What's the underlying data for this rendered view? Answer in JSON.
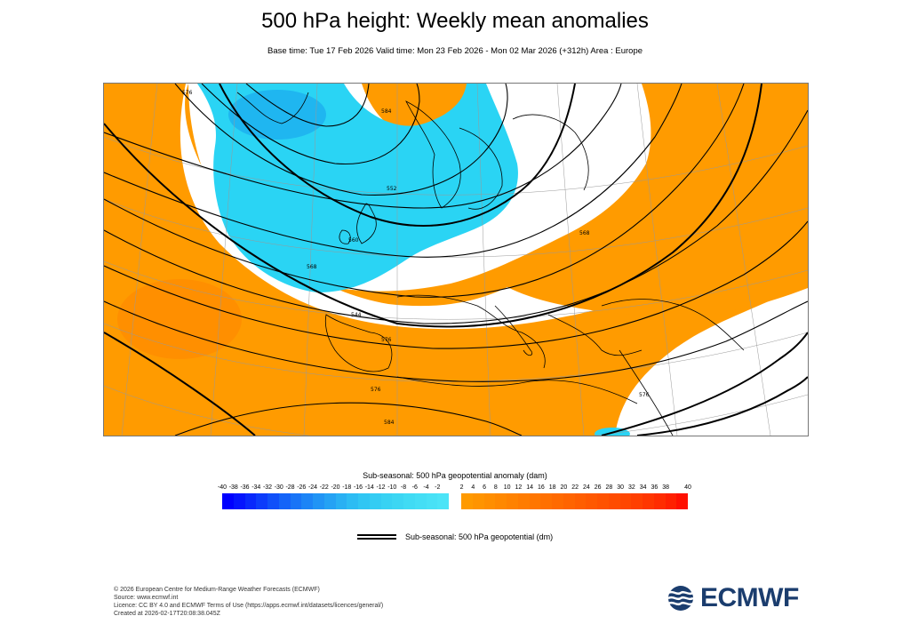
{
  "title": "500 hPa height: Weekly mean anomalies",
  "subtitle": "Base time: Tue 17 Feb 2026 Valid time: Mon 23 Feb 2026 - Mon 02 Mar 2026 (+312h) Area : Europe",
  "map": {
    "contour_labels": [
      "576",
      "584",
      "552",
      "560",
      "568",
      "544",
      "576",
      "576",
      "568",
      "576",
      "584"
    ]
  },
  "colorbar": {
    "title": "Sub-seasonal: 500 hPa geopotential anomaly (dam)",
    "neg_ticks": [
      "-40",
      "-38",
      "-36",
      "-34",
      "-32",
      "-30",
      "-28",
      "-26",
      "-24",
      "-22",
      "-20",
      "-18",
      "-16",
      "-14",
      "-12",
      "-10",
      "-8",
      "-6",
      "-4",
      "-2"
    ],
    "pos_ticks": [
      "2",
      "4",
      "6",
      "8",
      "10",
      "12",
      "14",
      "16",
      "18",
      "20",
      "22",
      "24",
      "26",
      "28",
      "30",
      "32",
      "34",
      "36",
      "38",
      "40"
    ],
    "neg_colors": [
      "#0000ff",
      "#0414fe",
      "#0828fc",
      "#0c3cfb",
      "#1050f9",
      "#1464f8",
      "#1874f7",
      "#1c84f6",
      "#2094f5",
      "#24a2f4",
      "#28b0f3",
      "#2cbcf3",
      "#30c6f3",
      "#34ccf3",
      "#38d2f3",
      "#3cd6f3",
      "#40dbf4",
      "#44def5",
      "#48e1f6",
      "#4ce4f7"
    ],
    "pos_colors": [
      "#ff9a00",
      "#ff9400",
      "#ff8e00",
      "#ff8800",
      "#ff8200",
      "#ff7c00",
      "#ff7600",
      "#ff7000",
      "#ff6a00",
      "#ff6400",
      "#ff5e00",
      "#ff5800",
      "#ff5200",
      "#ff4c00",
      "#ff4600",
      "#ff3f00",
      "#ff3600",
      "#ff2c00",
      "#ff2000",
      "#ff1000"
    ]
  },
  "legend": {
    "line_label": "Sub-seasonal: 500 hPa geopotential (dm)"
  },
  "footer": {
    "lines": [
      "© 2026 European Centre for Medium-Range Weather Forecasts (ECMWF)",
      "Source: www.ecmwf.int",
      "Licence: CC BY 4.0 and ECMWF Terms of Use (https://apps.ecmwf.int/datasets/licences/general/)",
      "Created at 2026-02-17T20:08:38.045Z"
    ]
  },
  "logo": {
    "text": "ECMWF",
    "color": "#1b3d6e"
  }
}
